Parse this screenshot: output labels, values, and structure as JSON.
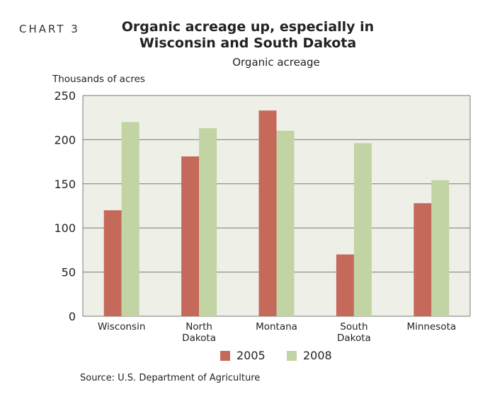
{
  "chart_number": "CHART 3",
  "chart_data": {
    "type": "bar",
    "title": "Organic acreage up, especially in Wisconsin and South Dakota",
    "subtitle": "Organic acreage",
    "ylabel": "Thousands of acres",
    "xlabel": "",
    "categories": [
      [
        "Wisconsin"
      ],
      [
        "North",
        "Dakota"
      ],
      [
        "Montana"
      ],
      [
        "South",
        "Dakota"
      ],
      [
        "Minnesota"
      ]
    ],
    "series": [
      {
        "name": "2005",
        "color": "#c5695b",
        "values": [
          120,
          181,
          233,
          70,
          128
        ]
      },
      {
        "name": "2008",
        "color": "#c2d3a4",
        "values": [
          220,
          213,
          210,
          196,
          154
        ]
      }
    ],
    "ylim": [
      0,
      250
    ],
    "yticks": [
      0,
      50,
      100,
      150,
      200,
      250
    ],
    "grid": true,
    "plot_background": "#eef0e8",
    "legend_position": "bottom"
  },
  "source": "Source: U.S. Department of Agriculture"
}
